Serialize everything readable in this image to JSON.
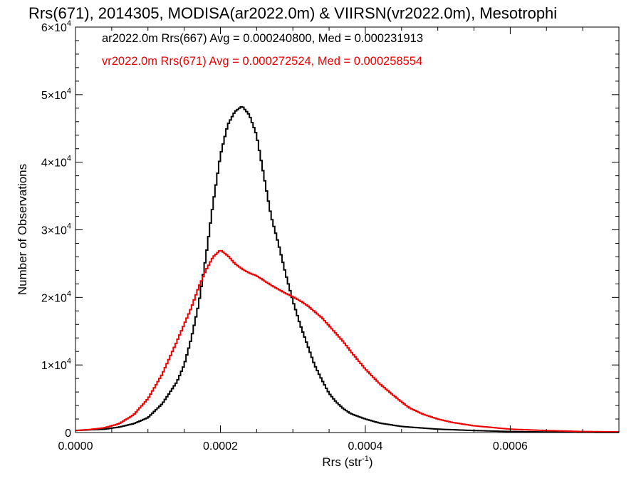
{
  "chart_data": {
    "type": "line",
    "title": "Rrs(671), 2014305, MODISA(ar2022.0m) & VIIRSN(vr2022.0m), Mesotrophi",
    "xlabel": "Rrs (str",
    "xlabel_sup": "-1",
    "xlabel_close": ")",
    "ylabel": "Number of Observations",
    "xlim": [
      0.0,
      0.00075
    ],
    "ylim": [
      0,
      60000
    ],
    "xticks": [
      {
        "value": 0.0,
        "label": "0.0000"
      },
      {
        "value": 0.0002,
        "label": "0.0002"
      },
      {
        "value": 0.0004,
        "label": "0.0004"
      },
      {
        "value": 0.0006,
        "label": "0.0006"
      }
    ],
    "yticks": [
      {
        "value": 0,
        "label": "0",
        "sup": ""
      },
      {
        "value": 10000,
        "label": "1×10",
        "sup": "4"
      },
      {
        "value": 20000,
        "label": "2×10",
        "sup": "4"
      },
      {
        "value": 30000,
        "label": "3×10",
        "sup": "4"
      },
      {
        "value": 40000,
        "label": "4×10",
        "sup": "4"
      },
      {
        "value": 50000,
        "label": "5×10",
        "sup": "4"
      },
      {
        "value": 60000,
        "label": "6×10",
        "sup": "4"
      }
    ],
    "legend_position": "top-left",
    "legend": [
      "ar2022.0m Rrs(667) Avg = 0.000240800, Med = 0.000231913",
      "vr2022.0m Rrs(671) Avg = 0.000272524, Med = 0.000258554"
    ],
    "series": [
      {
        "color": "#000000",
        "points": [
          [
            0.0,
            300
          ],
          [
            4e-05,
            500
          ],
          [
            6e-05,
            800
          ],
          [
            8e-05,
            1300
          ],
          [
            0.0001,
            2200
          ],
          [
            0.00012,
            4300
          ],
          [
            0.00014,
            7500
          ],
          [
            0.00015,
            10000
          ],
          [
            0.00016,
            14000
          ],
          [
            0.00017,
            19000
          ],
          [
            0.00018,
            26000
          ],
          [
            0.00019,
            34000
          ],
          [
            0.0002,
            41000
          ],
          [
            0.00021,
            45500
          ],
          [
            0.00022,
            47500
          ],
          [
            0.00023,
            48300
          ],
          [
            0.00024,
            47000
          ],
          [
            0.00025,
            44000
          ],
          [
            0.00026,
            38000
          ],
          [
            0.00027,
            32000
          ],
          [
            0.00028,
            28000
          ],
          [
            0.00029,
            23500
          ],
          [
            0.0003,
            19500
          ],
          [
            0.00031,
            16000
          ],
          [
            0.00032,
            13000
          ],
          [
            0.00033,
            10000
          ],
          [
            0.00034,
            7800
          ],
          [
            0.00035,
            5800
          ],
          [
            0.00036,
            4500
          ],
          [
            0.00037,
            3500
          ],
          [
            0.00038,
            2800
          ],
          [
            0.0004,
            2000
          ],
          [
            0.00042,
            1400
          ],
          [
            0.00045,
            900
          ],
          [
            0.0005,
            500
          ],
          [
            0.00055,
            300
          ],
          [
            0.0006,
            150
          ],
          [
            0.00065,
            80
          ],
          [
            0.0007,
            40
          ],
          [
            0.00075,
            20
          ]
        ]
      },
      {
        "color": "#ee0000",
        "points": [
          [
            0.0,
            300
          ],
          [
            2e-05,
            450
          ],
          [
            4e-05,
            700
          ],
          [
            6e-05,
            1300
          ],
          [
            8e-05,
            2600
          ],
          [
            0.0001,
            5000
          ],
          [
            0.00012,
            8700
          ],
          [
            0.00014,
            13500
          ],
          [
            0.00016,
            18500
          ],
          [
            0.00017,
            21500
          ],
          [
            0.00018,
            24000
          ],
          [
            0.00019,
            26000
          ],
          [
            0.0002,
            27000
          ],
          [
            0.00021,
            26200
          ],
          [
            0.00022,
            25000
          ],
          [
            0.00023,
            24200
          ],
          [
            0.00024,
            23600
          ],
          [
            0.00025,
            23200
          ],
          [
            0.00026,
            22500
          ],
          [
            0.00027,
            21800
          ],
          [
            0.00028,
            21200
          ],
          [
            0.00029,
            20600
          ],
          [
            0.0003,
            20100
          ],
          [
            0.00031,
            19500
          ],
          [
            0.00032,
            18800
          ],
          [
            0.00033,
            17900
          ],
          [
            0.00034,
            17000
          ],
          [
            0.00035,
            15800
          ],
          [
            0.00036,
            14600
          ],
          [
            0.00037,
            13400
          ],
          [
            0.00038,
            12000
          ],
          [
            0.00039,
            10700
          ],
          [
            0.0004,
            9400
          ],
          [
            0.00042,
            7200
          ],
          [
            0.00044,
            5400
          ],
          [
            0.00046,
            3700
          ],
          [
            0.00048,
            2700
          ],
          [
            0.0005,
            2000
          ],
          [
            0.00052,
            1500
          ],
          [
            0.00055,
            1000
          ],
          [
            0.0006,
            500
          ],
          [
            0.00065,
            300
          ],
          [
            0.0007,
            150
          ],
          [
            0.00075,
            100
          ]
        ]
      }
    ]
  }
}
